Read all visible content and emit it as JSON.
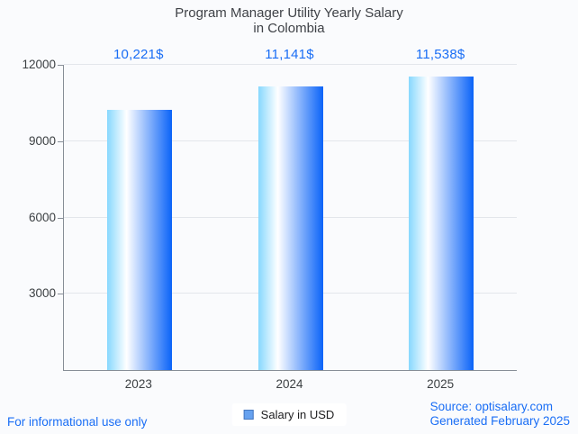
{
  "title": {
    "line1": "Program Manager Utility Yearly Salary",
    "line2": "in Colombia"
  },
  "chart_data": {
    "type": "bar",
    "title": "Program Manager Utility Yearly Salary in Colombia",
    "categories": [
      "2023",
      "2024",
      "2025"
    ],
    "values": [
      10221,
      11141,
      11538
    ],
    "value_labels": [
      "10,221$",
      "11,141$",
      "11,538$"
    ],
    "series_name": "Salary in USD",
    "xlabel": "",
    "ylabel": "",
    "ylim": [
      0,
      12000
    ],
    "yticks": [
      3000,
      6000,
      9000,
      12000
    ],
    "ytick_labels": [
      "3000",
      "6000",
      "9000",
      "12000"
    ],
    "grid": "horizontal",
    "legend_position": "bottom-center"
  },
  "legend": {
    "label": "Salary in USD",
    "marker_fill": "#66a1ef",
    "marker_border": "#4678bf"
  },
  "footer": {
    "left": "For informational use only",
    "source": "Source: optisalary.com",
    "generated": "Generated February 2025"
  },
  "colors": {
    "accent_text": "#1a6ef5",
    "bar_gradient_start": "#87d8fe",
    "bar_gradient_mid": "#ffffff",
    "bar_gradient_end": "#0a63f8",
    "grid_line": "#e3e6eb",
    "axis_line": "#878e97",
    "title_text": "#3f4247",
    "background": "#fafbfd"
  }
}
